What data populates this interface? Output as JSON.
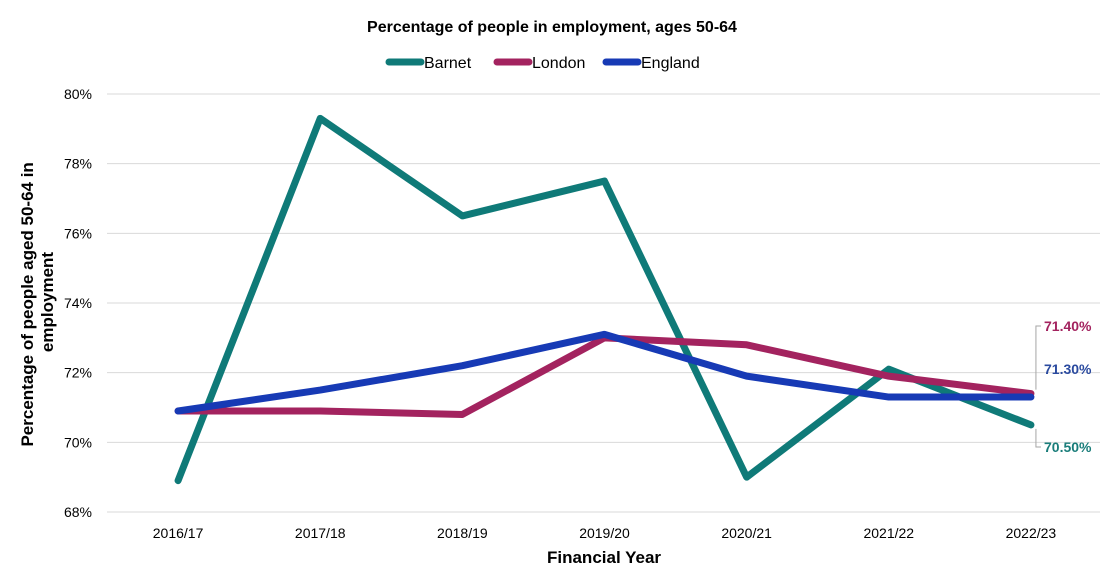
{
  "chart_data": {
    "type": "line",
    "title": "Percentage of people in employment, ages 50-64",
    "xlabel": "Financial Year",
    "ylabel": "Percentage of people aged 50-64 in employment",
    "categories": [
      "2016/17",
      "2017/18",
      "2018/19",
      "2019/20",
      "2020/21",
      "2021/22",
      "2022/23"
    ],
    "ylim": [
      68,
      80
    ],
    "yticks": [
      "68%",
      "70%",
      "72%",
      "74%",
      "76%",
      "78%",
      "80%"
    ],
    "grid": true,
    "legend_position": "top",
    "series": [
      {
        "name": "Barnet",
        "color": "#0f7a78",
        "values": [
          68.9,
          79.3,
          76.5,
          77.5,
          69.0,
          72.1,
          70.5
        ]
      },
      {
        "name": "London",
        "color": "#a3235f",
        "values": [
          70.9,
          70.9,
          70.8,
          73.0,
          72.8,
          71.9,
          71.4
        ]
      },
      {
        "name": "England",
        "color": "#173ab5",
        "values": [
          70.9,
          71.5,
          72.2,
          73.1,
          71.9,
          71.3,
          71.3
        ]
      }
    ],
    "data_labels": [
      {
        "series": "London",
        "text": "71.40%",
        "color": "#a3235f"
      },
      {
        "series": "England",
        "text": "71.30%",
        "color": "#2a4a9f"
      },
      {
        "series": "Barnet",
        "text": "70.50%",
        "color": "#1a7d7a"
      }
    ]
  }
}
